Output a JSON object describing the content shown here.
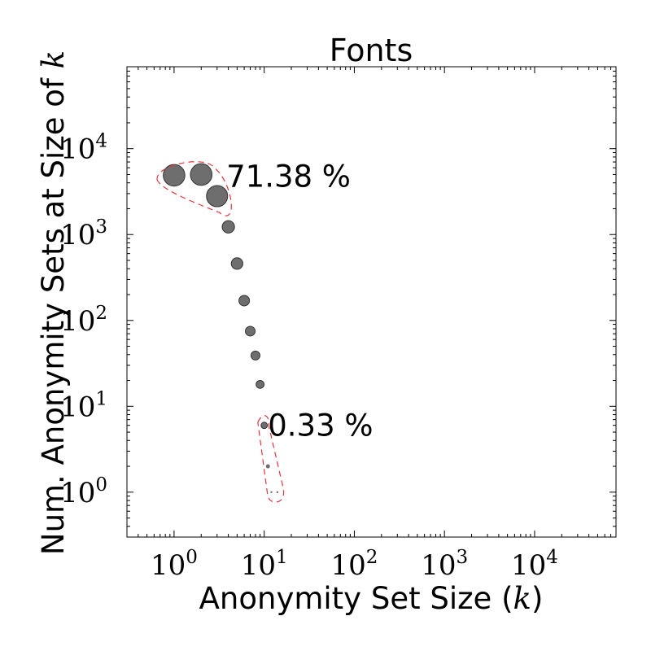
{
  "chart_data": {
    "type": "scatter",
    "title": "Fonts",
    "xlabel": "Anonymity Set Size (k)",
    "ylabel": "Num. Anonymity Sets at Size of k",
    "xscale": "log",
    "yscale": "log",
    "xlim": [
      0.3,
      80000
    ],
    "ylim": [
      0.3,
      90000
    ],
    "x_ticks": [
      {
        "value": 1,
        "base": "10",
        "exp": "0"
      },
      {
        "value": 10,
        "base": "10",
        "exp": "1"
      },
      {
        "value": 100,
        "base": "10",
        "exp": "2"
      },
      {
        "value": 1000,
        "base": "10",
        "exp": "3"
      },
      {
        "value": 10000,
        "base": "10",
        "exp": "4"
      }
    ],
    "y_ticks": [
      {
        "value": 1,
        "base": "10",
        "exp": "0"
      },
      {
        "value": 10,
        "base": "10",
        "exp": "1"
      },
      {
        "value": 100,
        "base": "10",
        "exp": "2"
      },
      {
        "value": 1000,
        "base": "10",
        "exp": "3"
      },
      {
        "value": 10000,
        "base": "10",
        "exp": "4"
      }
    ],
    "grid": false,
    "marker_color": "#555555",
    "highlight_color": "#e8333a",
    "points": [
      {
        "x": 1,
        "y": 4900
      },
      {
        "x": 2,
        "y": 5000
      },
      {
        "x": 3,
        "y": 2800
      },
      {
        "x": 4,
        "y": 1230
      },
      {
        "x": 5,
        "y": 460
      },
      {
        "x": 6,
        "y": 170
      },
      {
        "x": 7,
        "y": 75
      },
      {
        "x": 8,
        "y": 39
      },
      {
        "x": 9,
        "y": 18
      },
      {
        "x": 10,
        "y": 6
      },
      {
        "x": 11,
        "y": 2
      },
      {
        "x": 12,
        "y": 1
      },
      {
        "x": 14,
        "y": 1
      }
    ],
    "annotations": [
      {
        "text": "71.38 %",
        "x": 3.8,
        "y": 4800
      },
      {
        "text": "0.33 %",
        "x": 11,
        "y": 6
      }
    ]
  }
}
